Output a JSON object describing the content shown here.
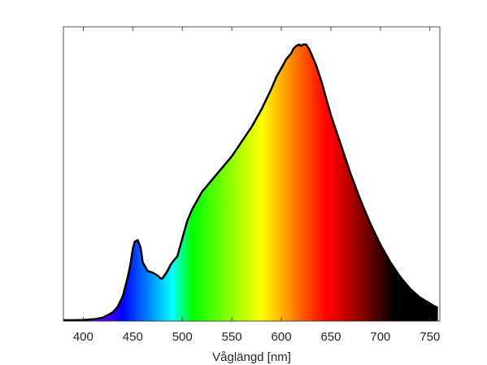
{
  "chart_data": {
    "type": "area",
    "title": "",
    "xlabel": "Våglängd [nm]",
    "ylabel": "",
    "xlim": [
      380,
      760
    ],
    "ylim": [
      0,
      1
    ],
    "grid": false,
    "xticks": [
      {
        "value": 400,
        "label": "400"
      },
      {
        "value": 450,
        "label": "450"
      },
      {
        "value": 500,
        "label": "500"
      },
      {
        "value": 550,
        "label": "550"
      },
      {
        "value": 600,
        "label": "600"
      },
      {
        "value": 650,
        "label": "650"
      },
      {
        "value": 700,
        "label": "700"
      },
      {
        "value": 750,
        "label": "750"
      }
    ],
    "fill": "visible-spectrum color gradient",
    "series": [
      {
        "values_x": [
          380,
          390,
          400,
          410,
          420,
          430,
          435,
          440,
          445,
          448,
          450,
          452,
          455,
          458,
          460,
          465,
          470,
          475,
          478,
          480,
          485,
          488,
          490,
          495,
          500,
          505,
          510,
          515,
          520,
          525,
          530,
          540,
          550,
          560,
          570,
          580,
          590,
          595,
          600,
          605,
          610,
          612,
          615,
          618,
          620,
          622,
          625,
          628,
          630,
          635,
          640,
          650,
          660,
          670,
          680,
          690,
          700,
          710,
          720,
          730,
          740,
          750,
          755,
          758
        ],
        "values_y": [
          0.003,
          0.003,
          0.004,
          0.006,
          0.012,
          0.03,
          0.05,
          0.085,
          0.15,
          0.2,
          0.245,
          0.27,
          0.275,
          0.25,
          0.2,
          0.17,
          0.165,
          0.155,
          0.145,
          0.145,
          0.17,
          0.19,
          0.2,
          0.22,
          0.28,
          0.34,
          0.38,
          0.41,
          0.44,
          0.46,
          0.48,
          0.52,
          0.56,
          0.61,
          0.66,
          0.72,
          0.79,
          0.83,
          0.86,
          0.89,
          0.91,
          0.925,
          0.935,
          0.94,
          0.935,
          0.94,
          0.94,
          0.925,
          0.91,
          0.87,
          0.82,
          0.7,
          0.6,
          0.5,
          0.41,
          0.33,
          0.26,
          0.2,
          0.15,
          0.11,
          0.08,
          0.06,
          0.05,
          0.045
        ]
      }
    ]
  }
}
